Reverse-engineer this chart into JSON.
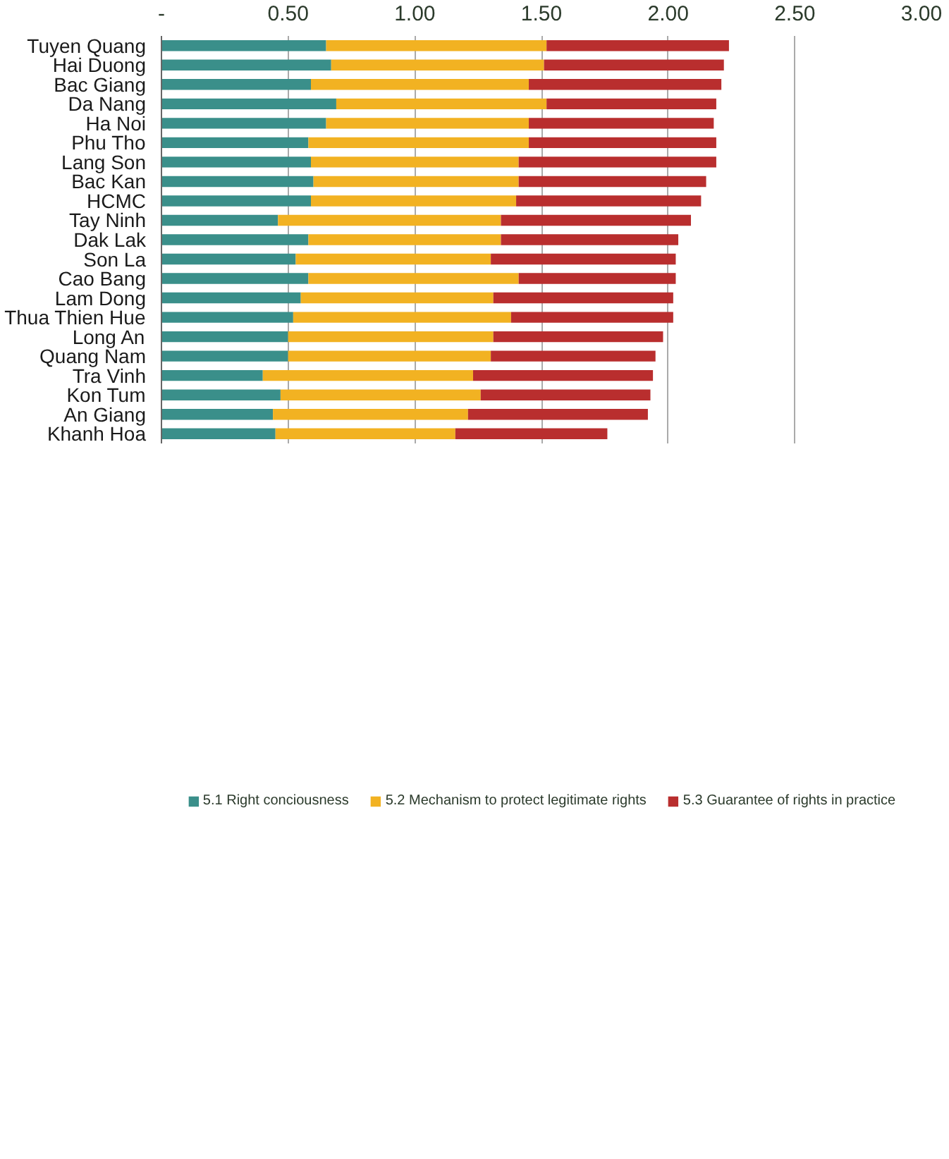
{
  "chart_data": {
    "type": "bar",
    "orientation": "horizontal",
    "stacked": true,
    "categories": [
      "Tuyen Quang",
      "Hai Duong",
      "Bac Giang",
      "Da Nang",
      "Ha Noi",
      "Phu Tho",
      "Lang Son",
      "Bac Kan",
      "HCMC",
      "Tay Ninh",
      "Dak Lak",
      "Son La",
      "Cao Bang",
      "Lam Dong",
      "Thua Thien Hue",
      "Long An",
      "Quang Nam",
      "Tra Vinh",
      "Kon Tum",
      "An Giang",
      "Khanh Hoa"
    ],
    "series": [
      {
        "name": "5.1 Right conciousness",
        "color": "#3a8f8a",
        "values": [
          0.65,
          0.67,
          0.59,
          0.69,
          0.65,
          0.58,
          0.59,
          0.6,
          0.59,
          0.46,
          0.58,
          0.53,
          0.58,
          0.55,
          0.52,
          0.5,
          0.5,
          0.4,
          0.47,
          0.44,
          0.45
        ]
      },
      {
        "name": "5.2 Mechanism to protect legitimate rights",
        "color": "#f2b222",
        "values": [
          0.87,
          0.84,
          0.86,
          0.83,
          0.8,
          0.87,
          0.82,
          0.81,
          0.81,
          0.88,
          0.76,
          0.77,
          0.83,
          0.76,
          0.86,
          0.81,
          0.8,
          0.83,
          0.79,
          0.77,
          0.71
        ]
      },
      {
        "name": "5.3 Guarantee of rights in practice",
        "color": "#b92e2e",
        "values": [
          0.72,
          0.71,
          0.76,
          0.67,
          0.73,
          0.74,
          0.78,
          0.74,
          0.73,
          0.75,
          0.7,
          0.73,
          0.62,
          0.71,
          0.64,
          0.67,
          0.65,
          0.71,
          0.67,
          0.71,
          0.6
        ]
      }
    ],
    "xlim": [
      0,
      3
    ],
    "xticks": [
      {
        "value": 0,
        "label": "-"
      },
      {
        "value": 0.5,
        "label": "0.50"
      },
      {
        "value": 1,
        "label": "1.00"
      },
      {
        "value": 1.5,
        "label": "1.50"
      },
      {
        "value": 2,
        "label": "2.00"
      },
      {
        "value": 2.5,
        "label": "2.50"
      },
      {
        "value": 3,
        "label": "3.00"
      }
    ],
    "grid": "x",
    "legend": "bottom"
  }
}
